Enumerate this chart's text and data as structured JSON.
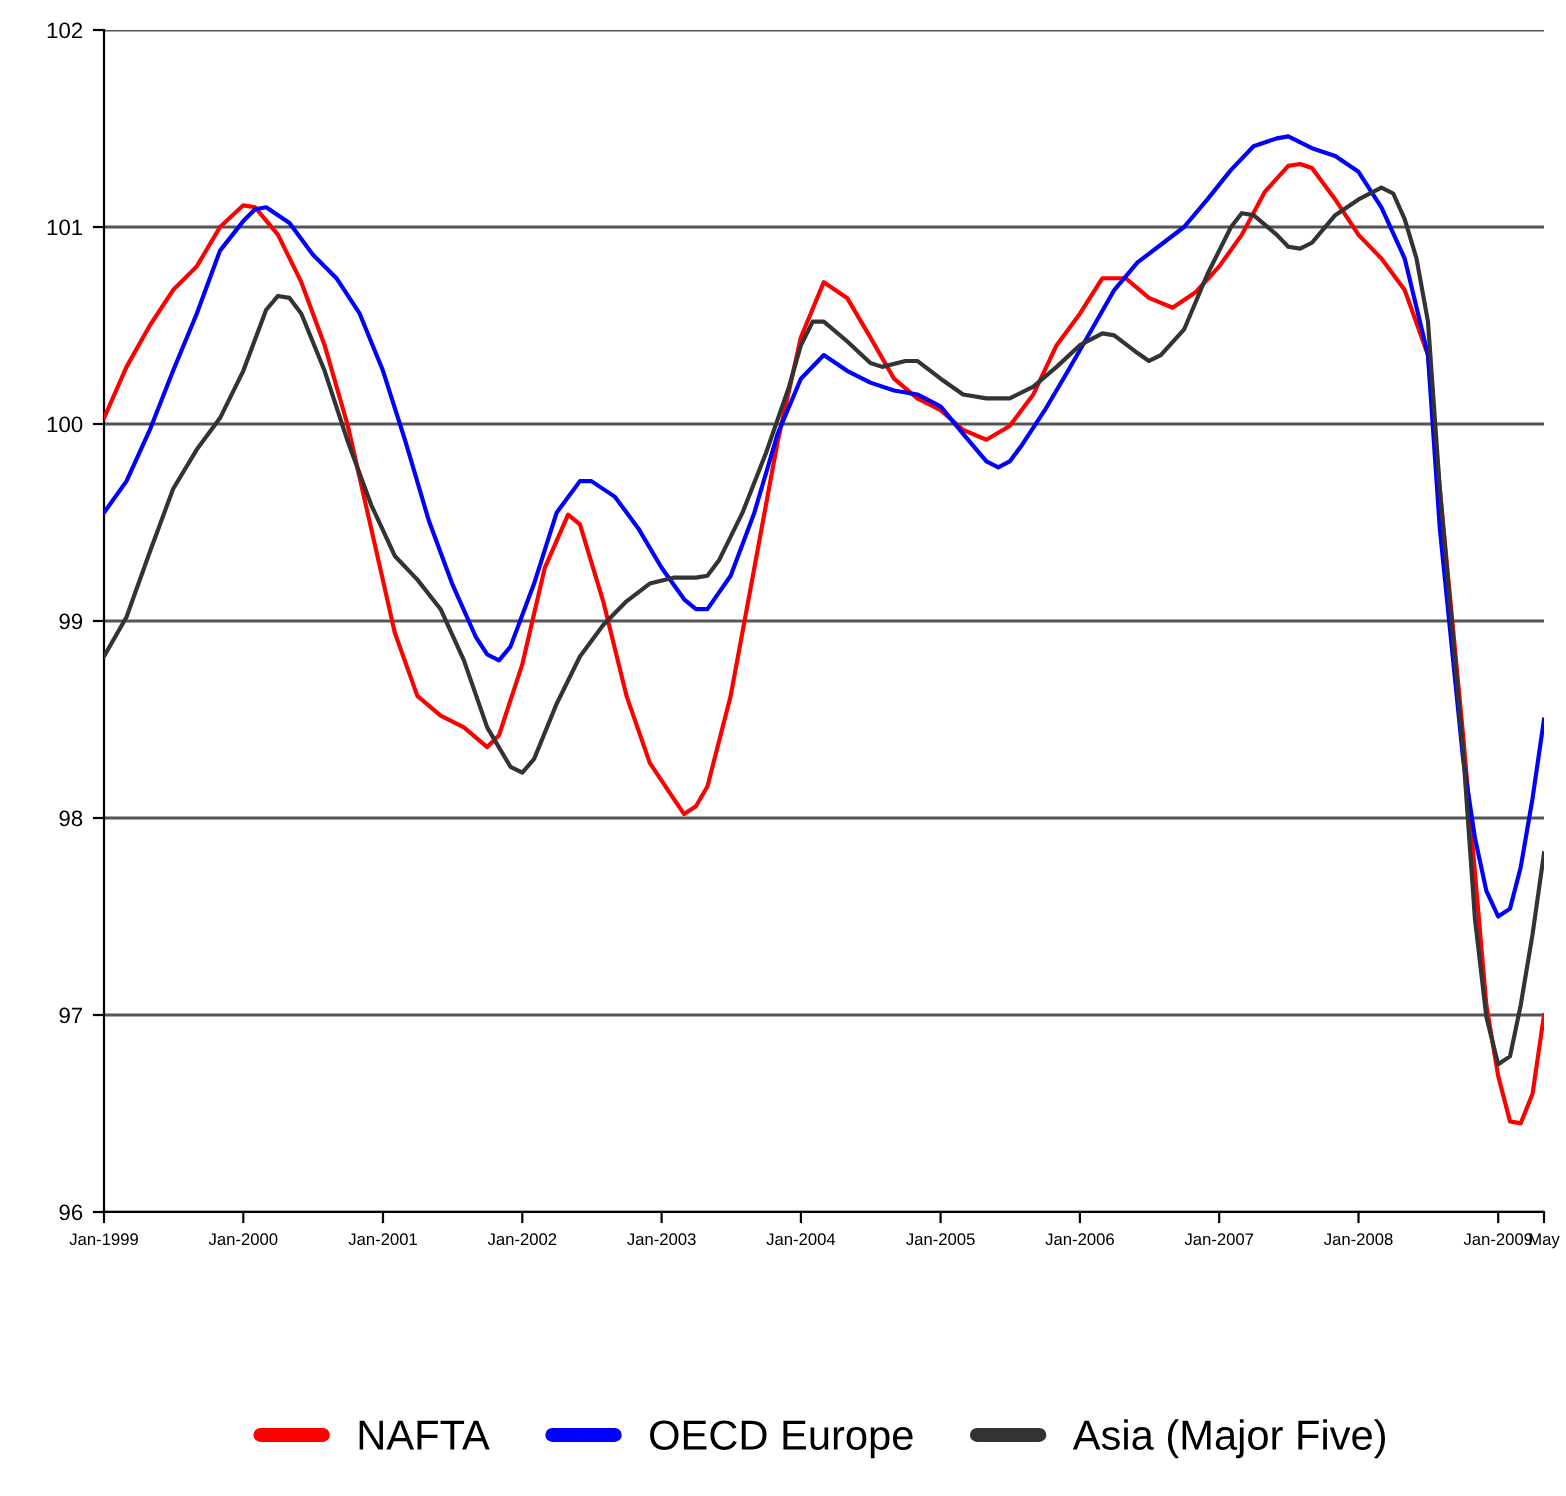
{
  "chart_data": {
    "type": "line",
    "ylim": [
      96,
      102
    ],
    "yticks": [
      96,
      97,
      98,
      99,
      100,
      101,
      102
    ],
    "xlim": [
      "1999-01",
      "2009-05"
    ],
    "xticks": [
      {
        "value": "1999-01",
        "label": "Jan-1999"
      },
      {
        "value": "2000-01",
        "label": "Jan-2000"
      },
      {
        "value": "2001-01",
        "label": "Jan-2001"
      },
      {
        "value": "2002-01",
        "label": "Jan-2002"
      },
      {
        "value": "2003-01",
        "label": "Jan-2003"
      },
      {
        "value": "2004-01",
        "label": "Jan-2004"
      },
      {
        "value": "2005-01",
        "label": "Jan-2005"
      },
      {
        "value": "2006-01",
        "label": "Jan-2006"
      },
      {
        "value": "2007-01",
        "label": "Jan-2007"
      },
      {
        "value": "2008-01",
        "label": "Jan-2008"
      },
      {
        "value": "2009-01",
        "label": "Jan-2009"
      },
      {
        "value": "2009-05",
        "label": "May"
      }
    ],
    "grid": "y",
    "legend": "bottom",
    "marker": "none",
    "line_style": "solid",
    "series": [
      {
        "name": "NAFTA",
        "color": "#ff0000",
        "x": [
          "1999-01",
          "1999-03",
          "1999-05",
          "1999-07",
          "1999-09",
          "1999-11",
          "2000-01",
          "2000-02",
          "2000-04",
          "2000-06",
          "2000-08",
          "2000-10",
          "2000-12",
          "2001-02",
          "2001-04",
          "2001-06",
          "2001-08",
          "2001-10",
          "2001-11",
          "2002-01",
          "2002-03",
          "2002-05",
          "2002-06",
          "2002-08",
          "2002-10",
          "2002-12",
          "2003-02",
          "2003-03",
          "2003-04",
          "2003-05",
          "2003-07",
          "2003-09",
          "2003-11",
          "2004-01",
          "2004-03",
          "2004-05",
          "2004-07",
          "2004-09",
          "2004-11",
          "2005-01",
          "2005-03",
          "2005-05",
          "2005-07",
          "2005-09",
          "2005-11",
          "2006-01",
          "2006-03",
          "2006-05",
          "2006-07",
          "2006-09",
          "2006-11",
          "2007-01",
          "2007-03",
          "2007-05",
          "2007-07",
          "2007-08",
          "2007-09",
          "2007-11",
          "2008-01",
          "2008-03",
          "2008-05",
          "2008-07",
          "2008-08",
          "2008-10",
          "2008-12",
          "2009-01",
          "2009-02",
          "2009-03",
          "2009-04",
          "2009-05"
        ],
        "values": [
          100.03,
          100.29,
          100.5,
          100.68,
          100.8,
          101.0,
          101.11,
          101.1,
          100.96,
          100.72,
          100.4,
          99.99,
          99.47,
          98.94,
          98.62,
          98.52,
          98.46,
          98.36,
          98.42,
          98.78,
          99.27,
          99.54,
          99.49,
          99.1,
          98.62,
          98.28,
          98.1,
          98.02,
          98.06,
          98.16,
          98.62,
          99.27,
          99.91,
          100.44,
          100.72,
          100.64,
          100.44,
          100.23,
          100.13,
          100.07,
          99.97,
          99.92,
          99.99,
          100.15,
          100.4,
          100.56,
          100.74,
          100.74,
          100.64,
          100.59,
          100.67,
          100.8,
          100.96,
          101.18,
          101.31,
          101.32,
          101.3,
          101.14,
          100.96,
          100.84,
          100.68,
          100.35,
          99.67,
          98.42,
          97.05,
          96.69,
          96.46,
          96.45,
          96.6,
          97.0
        ]
      },
      {
        "name": "OECD Europe",
        "color": "#0000ff",
        "x": [
          "1999-01",
          "1999-03",
          "1999-05",
          "1999-07",
          "1999-09",
          "1999-11",
          "2000-01",
          "2000-02",
          "2000-03",
          "2000-05",
          "2000-07",
          "2000-09",
          "2000-11",
          "2001-01",
          "2001-03",
          "2001-05",
          "2001-07",
          "2001-09",
          "2001-10",
          "2001-11",
          "2001-12",
          "2002-02",
          "2002-04",
          "2002-06",
          "2002-07",
          "2002-09",
          "2002-11",
          "2003-01",
          "2003-03",
          "2003-04",
          "2003-05",
          "2003-07",
          "2003-09",
          "2003-11",
          "2004-01",
          "2004-03",
          "2004-05",
          "2004-07",
          "2004-09",
          "2004-11",
          "2005-01",
          "2005-03",
          "2005-05",
          "2005-06",
          "2005-07",
          "2005-08",
          "2005-10",
          "2005-12",
          "2006-02",
          "2006-04",
          "2006-06",
          "2006-08",
          "2006-10",
          "2006-12",
          "2007-02",
          "2007-04",
          "2007-06",
          "2007-07",
          "2007-09",
          "2007-11",
          "2008-01",
          "2008-03",
          "2008-05",
          "2008-07",
          "2008-08",
          "2008-10",
          "2008-11",
          "2008-12",
          "2009-01",
          "2009-02",
          "2009-03",
          "2009-04",
          "2009-05"
        ],
        "values": [
          99.55,
          99.71,
          99.97,
          100.27,
          100.56,
          100.88,
          101.03,
          101.09,
          101.1,
          101.02,
          100.86,
          100.74,
          100.56,
          100.27,
          99.91,
          99.51,
          99.19,
          98.92,
          98.83,
          98.8,
          98.87,
          99.19,
          99.55,
          99.71,
          99.71,
          99.63,
          99.47,
          99.27,
          99.11,
          99.06,
          99.06,
          99.23,
          99.55,
          99.95,
          100.23,
          100.35,
          100.27,
          100.21,
          100.17,
          100.15,
          100.09,
          99.95,
          99.81,
          99.78,
          99.81,
          99.89,
          100.07,
          100.27,
          100.48,
          100.68,
          100.82,
          100.91,
          101.0,
          101.14,
          101.29,
          101.41,
          101.45,
          101.46,
          101.4,
          101.36,
          101.28,
          101.1,
          100.84,
          100.35,
          99.47,
          98.3,
          97.9,
          97.63,
          97.5,
          97.54,
          97.75,
          98.1,
          98.5
        ]
      },
      {
        "name": "Asia (Major Five)",
        "color": "#333333",
        "x": [
          "1999-01",
          "1999-03",
          "1999-05",
          "1999-07",
          "1999-09",
          "1999-11",
          "2000-01",
          "2000-03",
          "2000-04",
          "2000-05",
          "2000-06",
          "2000-08",
          "2000-10",
          "2000-12",
          "2001-02",
          "2001-04",
          "2001-06",
          "2001-08",
          "2001-10",
          "2001-12",
          "2002-01",
          "2002-02",
          "2002-04",
          "2002-06",
          "2002-08",
          "2002-10",
          "2002-12",
          "2003-02",
          "2003-04",
          "2003-05",
          "2003-06",
          "2003-08",
          "2003-10",
          "2003-12",
          "2004-01",
          "2004-02",
          "2004-03",
          "2004-05",
          "2004-07",
          "2004-08",
          "2004-10",
          "2004-11",
          "2005-01",
          "2005-03",
          "2005-05",
          "2005-07",
          "2005-09",
          "2005-11",
          "2006-01",
          "2006-03",
          "2006-04",
          "2006-06",
          "2006-07",
          "2006-08",
          "2006-10",
          "2006-12",
          "2007-02",
          "2007-03",
          "2007-04",
          "2007-06",
          "2007-07",
          "2007-08",
          "2007-09",
          "2007-11",
          "2008-01",
          "2008-03",
          "2008-04",
          "2008-05",
          "2008-06",
          "2008-07",
          "2008-08",
          "2008-10",
          "2008-11",
          "2008-12",
          "2009-01",
          "2009-02",
          "2009-03",
          "2009-04",
          "2009-05"
        ],
        "values": [
          98.82,
          99.02,
          99.35,
          99.67,
          99.87,
          100.03,
          100.27,
          100.58,
          100.65,
          100.64,
          100.56,
          100.27,
          99.91,
          99.59,
          99.33,
          99.21,
          99.06,
          98.8,
          98.46,
          98.26,
          98.23,
          98.3,
          98.58,
          98.82,
          98.98,
          99.1,
          99.19,
          99.22,
          99.22,
          99.23,
          99.31,
          99.55,
          99.85,
          100.19,
          100.4,
          100.52,
          100.52,
          100.42,
          100.31,
          100.29,
          100.32,
          100.32,
          100.23,
          100.15,
          100.13,
          100.13,
          100.19,
          100.29,
          100.4,
          100.46,
          100.45,
          100.36,
          100.32,
          100.35,
          100.48,
          100.76,
          101.0,
          101.07,
          101.06,
          100.96,
          100.9,
          100.89,
          100.92,
          101.06,
          101.14,
          101.2,
          101.17,
          101.04,
          100.84,
          100.52,
          99.67,
          98.34,
          97.49,
          96.99,
          96.75,
          96.79,
          97.05,
          97.41,
          97.82
        ]
      }
    ]
  }
}
